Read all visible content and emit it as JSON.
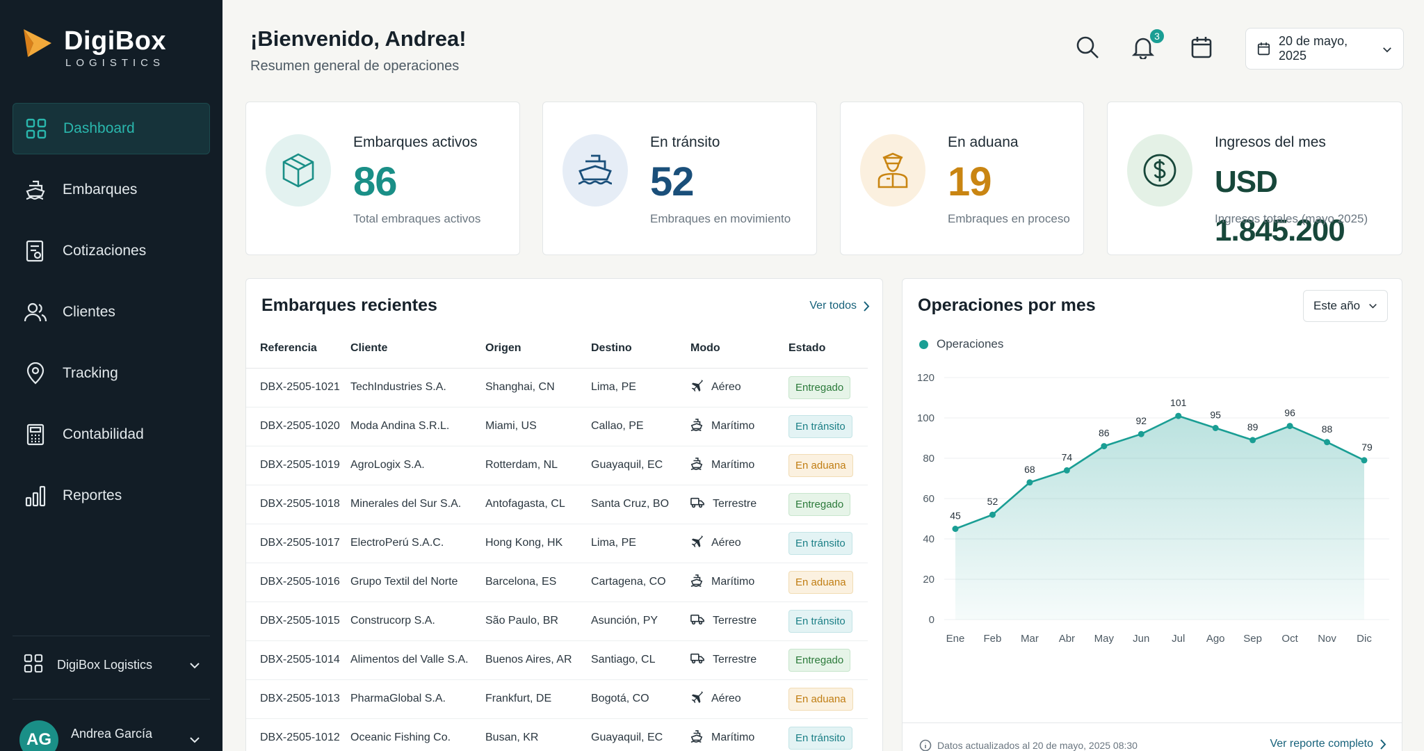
{
  "brand": {
    "name": "DigiBox",
    "sub": "LOGISTICS"
  },
  "sidebar": {
    "items": [
      {
        "label": "Dashboard",
        "icon": "grid-icon"
      },
      {
        "label": "Embarques",
        "icon": "ship-icon"
      },
      {
        "label": "Cotizaciones",
        "icon": "quote-document-icon"
      },
      {
        "label": "Clientes",
        "icon": "users-icon"
      },
      {
        "label": "Tracking",
        "icon": "map-pin-icon"
      },
      {
        "label": "Contabilidad",
        "icon": "calculator-icon"
      },
      {
        "label": "Reportes",
        "icon": "bar-chart-icon"
      }
    ],
    "active": "Dashboard",
    "org": "DigiBox Logistics",
    "user": {
      "initials": "AG",
      "name": "Andrea García"
    }
  },
  "header": {
    "title": "¡Bienvenido, Andrea!",
    "subtitle": "Resumen general de operaciones",
    "notifications": "3",
    "date": "20 de mayo, 2025"
  },
  "kpis": [
    {
      "title": "Embarques activos",
      "value": "86",
      "desc": "Total embraques activos",
      "icon": "box-icon",
      "color": "#1a8f87",
      "bg": "#e3f2f0"
    },
    {
      "title": "En tránsito",
      "value": "52",
      "desc": "Embraques en movimiento",
      "icon": "ship-icon",
      "color": "#1a4f7a",
      "bg": "#e6edf6"
    },
    {
      "title": "En aduana",
      "value": "19",
      "desc": "Embraques en proceso",
      "icon": "customs-officer-icon",
      "color": "#c98512",
      "bg": "#fbf0df"
    },
    {
      "title": "Ingresos del mes",
      "value": "USD 1.845.200",
      "desc": "Ingresos totales (mayo 2025)",
      "icon": "dollar-icon",
      "color": "#17473a",
      "bg": "#e4f1e6"
    }
  ],
  "shipments": {
    "title": "Embarques recientes",
    "see_all": "Ver todos",
    "columns": [
      "Referencia",
      "Cliente",
      "Origen",
      "Destino",
      "Modo",
      "Estado"
    ],
    "rows": [
      {
        "ref": "DBX-2505-1021",
        "client": "TechIndustries S.A.",
        "origin": "Shanghai, CN",
        "dest": "Lima, PE",
        "mode": "Aéreo",
        "mode_icon": "plane-icon",
        "status": "Entregado",
        "status_type": "ok"
      },
      {
        "ref": "DBX-2505-1020",
        "client": "Moda Andina S.R.L.",
        "origin": "Miami, US",
        "dest": "Callao, PE",
        "mode": "Marítimo",
        "mode_icon": "ship-icon",
        "status": "En tránsito",
        "status_type": "tr"
      },
      {
        "ref": "DBX-2505-1019",
        "client": "AgroLogix S.A.",
        "origin": "Rotterdam, NL",
        "dest": "Guayaquil, EC",
        "mode": "Marítimo",
        "mode_icon": "ship-icon",
        "status": "En aduana",
        "status_type": "cu"
      },
      {
        "ref": "DBX-2505-1018",
        "client": "Minerales del Sur S.A.",
        "origin": "Antofagasta, CL",
        "dest": "Santa Cruz, BO",
        "mode": "Terrestre",
        "mode_icon": "truck-icon",
        "status": "Entregado",
        "status_type": "ok"
      },
      {
        "ref": "DBX-2505-1017",
        "client": "ElectroPerú S.A.C.",
        "origin": "Hong Kong, HK",
        "dest": "Lima, PE",
        "mode": "Aéreo",
        "mode_icon": "plane-icon",
        "status": "En tránsito",
        "status_type": "tr"
      },
      {
        "ref": "DBX-2505-1016",
        "client": "Grupo Textil del Norte",
        "origin": "Barcelona, ES",
        "dest": "Cartagena, CO",
        "mode": "Marítimo",
        "mode_icon": "ship-icon",
        "status": "En aduana",
        "status_type": "cu"
      },
      {
        "ref": "DBX-2505-1015",
        "client": "Construcorp S.A.",
        "origin": "São Paulo, BR",
        "dest": "Asunción, PY",
        "mode": "Terrestre",
        "mode_icon": "truck-icon",
        "status": "En tránsito",
        "status_type": "tr"
      },
      {
        "ref": "DBX-2505-1014",
        "client": "Alimentos del Valle S.A.",
        "origin": "Buenos Aires, AR",
        "dest": "Santiago, CL",
        "mode": "Terrestre",
        "mode_icon": "truck-icon",
        "status": "Entregado",
        "status_type": "ok"
      },
      {
        "ref": "DBX-2505-1013",
        "client": "PharmaGlobal S.A.",
        "origin": "Frankfurt, DE",
        "dest": "Bogotá, CO",
        "mode": "Aéreo",
        "mode_icon": "plane-icon",
        "status": "En aduana",
        "status_type": "cu"
      },
      {
        "ref": "DBX-2505-1012",
        "client": "Oceanic Fishing Co.",
        "origin": "Busan, KR",
        "dest": "Guayaquil, EC",
        "mode": "Marítimo",
        "mode_icon": "ship-icon",
        "status": "En tránsito",
        "status_type": "tr"
      }
    ]
  },
  "operations": {
    "title": "Operaciones por mes",
    "range": "Este año",
    "updated": "Datos actualizados al 20 de mayo, 2025 08:30",
    "report_link": "Ver reporte completo"
  },
  "chart_data": {
    "type": "area",
    "title": "Operaciones por mes",
    "categories": [
      "Ene",
      "Feb",
      "Mar",
      "Abr",
      "May",
      "Jun",
      "Jul",
      "Ago",
      "Sep",
      "Oct",
      "Nov",
      "Dic"
    ],
    "series": [
      {
        "name": "Operaciones",
        "values": [
          45,
          52,
          68,
          74,
          86,
          92,
          101,
          95,
          89,
          96,
          88,
          79
        ]
      }
    ],
    "yticks": [
      0,
      20,
      40,
      60,
      80,
      100,
      120
    ],
    "ylim": [
      0,
      120
    ],
    "grid": true,
    "legend": "top-left",
    "color": "#1a9e94"
  }
}
